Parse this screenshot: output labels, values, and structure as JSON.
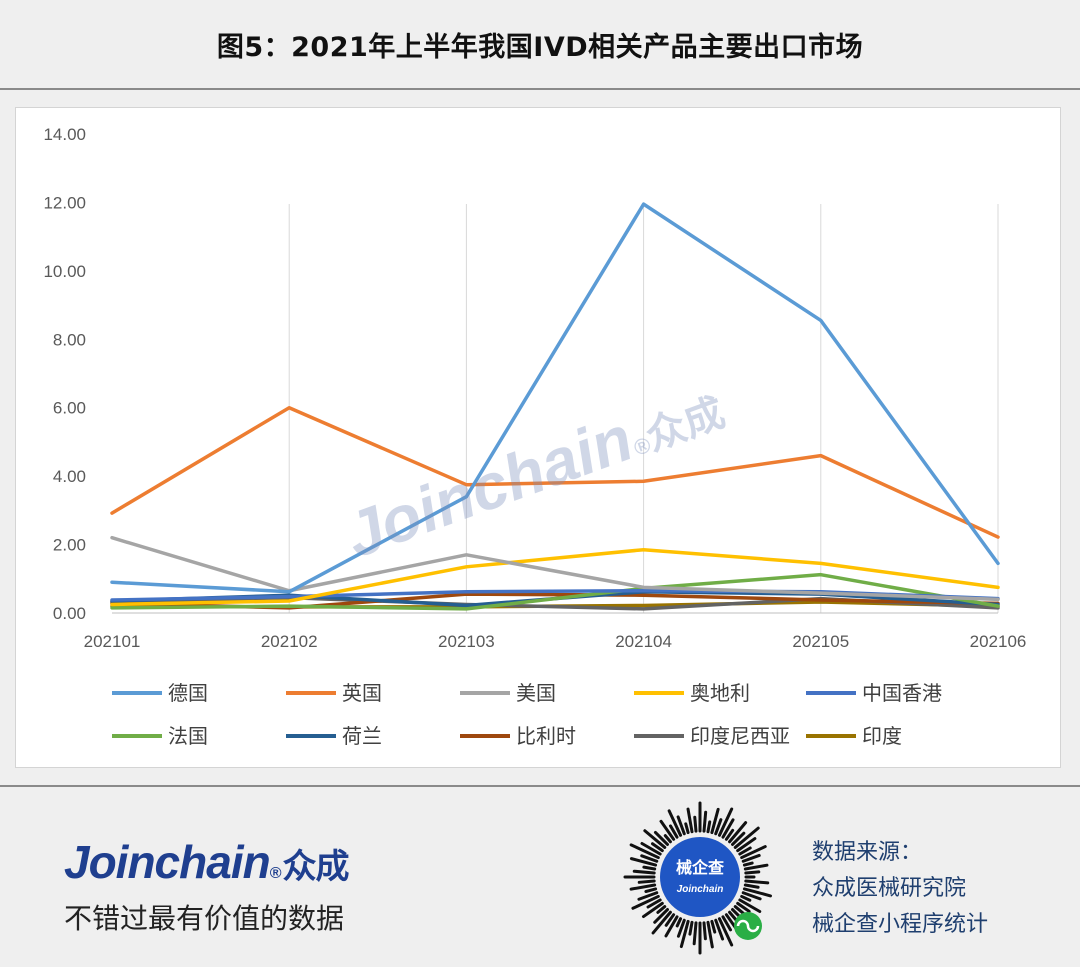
{
  "header": {
    "title": "图5：2021年上半年我国IVD相关产品主要出口市场"
  },
  "chart_data": {
    "type": "line",
    "title": "",
    "xlabel": "",
    "ylabel": "",
    "categories": [
      "202101",
      "202102",
      "202103",
      "202104",
      "202105",
      "202106"
    ],
    "ylim": [
      0,
      14
    ],
    "yticks": [
      "0.00",
      "2.00",
      "4.00",
      "6.00",
      "8.00",
      "10.00",
      "12.00",
      "14.00"
    ],
    "grid": "vertical",
    "legend_position": "bottom",
    "series": [
      {
        "name": "德国",
        "color": "#5B9BD5",
        "values": [
          0.9,
          0.62,
          3.4,
          11.95,
          8.55,
          1.45
        ]
      },
      {
        "name": "英国",
        "color": "#ED7D31",
        "values": [
          2.92,
          6.0,
          3.75,
          3.85,
          4.6,
          2.22
        ]
      },
      {
        "name": "美国",
        "color": "#A5A5A5",
        "values": [
          2.2,
          0.65,
          1.7,
          0.75,
          0.58,
          0.4
        ]
      },
      {
        "name": "奥地利",
        "color": "#FFC000",
        "values": [
          0.25,
          0.35,
          1.35,
          1.85,
          1.45,
          0.75
        ]
      },
      {
        "name": "中国香港",
        "color": "#4472C4",
        "values": [
          0.38,
          0.48,
          0.62,
          0.65,
          0.62,
          0.42
        ]
      },
      {
        "name": "法国",
        "color": "#70AD47",
        "values": [
          0.15,
          0.2,
          0.12,
          0.72,
          1.12,
          0.2
        ]
      },
      {
        "name": "荷兰",
        "color": "#255E91",
        "values": [
          0.35,
          0.52,
          0.22,
          0.62,
          0.55,
          0.25
        ]
      },
      {
        "name": "比利时",
        "color": "#9E480E",
        "values": [
          0.28,
          0.15,
          0.55,
          0.52,
          0.38,
          0.28
        ]
      },
      {
        "name": "印度尼西亚",
        "color": "#636363",
        "values": [
          0.32,
          0.45,
          0.25,
          0.12,
          0.42,
          0.15
        ]
      },
      {
        "name": "印度",
        "color": "#997300",
        "values": [
          0.2,
          0.18,
          0.18,
          0.22,
          0.32,
          0.2
        ]
      }
    ]
  },
  "watermark": {
    "latin": "Joinchain",
    "mark": "®",
    "cn": "众成"
  },
  "footer": {
    "brand_latin": "Joinchain",
    "brand_mark": "®",
    "brand_cn": "众成",
    "slogan": "不错过最有价值的数据",
    "qr_center_cn": "械企查",
    "qr_center_latin": "Joinchain",
    "source_lines": [
      "数据来源：",
      "众成医械研究院",
      "械企查小程序统计"
    ],
    "brand_color": "#1f3f8f"
  }
}
